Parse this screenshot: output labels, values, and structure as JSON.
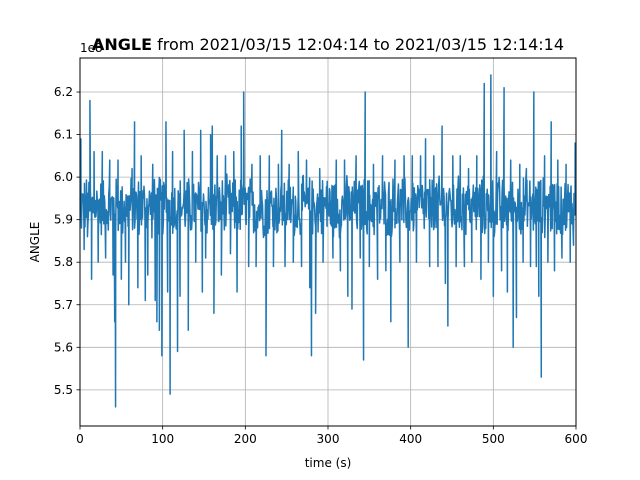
{
  "chart_data": {
    "type": "line",
    "title_bold": "ANGLE",
    "title_rest": " from 2021/03/15 12:04:14 to 2021/03/15 12:14:14",
    "xlabel": "time (s)",
    "ylabel": "ANGLE",
    "offset_label": "1e8",
    "xlim": [
      0,
      600
    ],
    "ylim": [
      5.415,
      6.28
    ],
    "xticks": [
      0,
      100,
      200,
      300,
      400,
      500,
      600
    ],
    "yticks": [
      5.5,
      5.6,
      5.7,
      5.8,
      5.9,
      6.0,
      6.1,
      6.2
    ],
    "ytick_labels": [
      "5.5",
      "5.6",
      "5.7",
      "5.8",
      "5.9",
      "6.0",
      "6.1",
      "6.2"
    ],
    "grid": true,
    "series": [
      {
        "color": "#1f77b4",
        "baseline": 5.93,
        "noise_range": [
          5.84,
          6.0
        ],
        "sample_step": 0.6,
        "spikes": [
          {
            "x": 1,
            "y": 6.09
          },
          {
            "x": 5,
            "y": 5.83
          },
          {
            "x": 9,
            "y": 5.86
          },
          {
            "x": 12,
            "y": 6.18
          },
          {
            "x": 14,
            "y": 5.76
          },
          {
            "x": 17,
            "y": 6.06
          },
          {
            "x": 22,
            "y": 5.8
          },
          {
            "x": 27,
            "y": 6.06
          },
          {
            "x": 31,
            "y": 5.81
          },
          {
            "x": 36,
            "y": 6.04
          },
          {
            "x": 40,
            "y": 5.77
          },
          {
            "x": 42,
            "y": 5.66
          },
          {
            "x": 43,
            "y": 5.46
          },
          {
            "x": 46,
            "y": 6.04
          },
          {
            "x": 50,
            "y": 5.76
          },
          {
            "x": 55,
            "y": 5.8
          },
          {
            "x": 59,
            "y": 5.7
          },
          {
            "x": 63,
            "y": 6.02
          },
          {
            "x": 66,
            "y": 6.13
          },
          {
            "x": 70,
            "y": 5.74
          },
          {
            "x": 74,
            "y": 6.05
          },
          {
            "x": 79,
            "y": 5.71
          },
          {
            "x": 82,
            "y": 5.77
          },
          {
            "x": 88,
            "y": 6.03
          },
          {
            "x": 91,
            "y": 5.71
          },
          {
            "x": 93,
            "y": 5.66
          },
          {
            "x": 96,
            "y": 5.64
          },
          {
            "x": 99,
            "y": 5.58
          },
          {
            "x": 104,
            "y": 6.13
          },
          {
            "x": 106,
            "y": 5.73
          },
          {
            "x": 109,
            "y": 5.49
          },
          {
            "x": 112,
            "y": 6.06
          },
          {
            "x": 118,
            "y": 5.59
          },
          {
            "x": 121,
            "y": 5.72
          },
          {
            "x": 126,
            "y": 6.11
          },
          {
            "x": 131,
            "y": 5.64
          },
          {
            "x": 136,
            "y": 6.06
          },
          {
            "x": 140,
            "y": 5.8
          },
          {
            "x": 146,
            "y": 6.11
          },
          {
            "x": 148,
            "y": 5.73
          },
          {
            "x": 152,
            "y": 5.81
          },
          {
            "x": 158,
            "y": 6.1
          },
          {
            "x": 160,
            "y": 6.12
          },
          {
            "x": 162,
            "y": 5.68
          },
          {
            "x": 166,
            "y": 6.05
          },
          {
            "x": 171,
            "y": 5.77
          },
          {
            "x": 176,
            "y": 6.05
          },
          {
            "x": 182,
            "y": 5.82
          },
          {
            "x": 186,
            "y": 6.06
          },
          {
            "x": 190,
            "y": 5.73
          },
          {
            "x": 195,
            "y": 6.12
          },
          {
            "x": 198,
            "y": 6.2
          },
          {
            "x": 204,
            "y": 5.79
          },
          {
            "x": 208,
            "y": 6.03
          },
          {
            "x": 213,
            "y": 5.79
          },
          {
            "x": 218,
            "y": 6.05
          },
          {
            "x": 225,
            "y": 5.58
          },
          {
            "x": 229,
            "y": 6.05
          },
          {
            "x": 234,
            "y": 5.79
          },
          {
            "x": 240,
            "y": 6.03
          },
          {
            "x": 244,
            "y": 6.11
          },
          {
            "x": 248,
            "y": 5.79
          },
          {
            "x": 253,
            "y": 6.03
          },
          {
            "x": 258,
            "y": 5.8
          },
          {
            "x": 264,
            "y": 6.06
          },
          {
            "x": 268,
            "y": 5.79
          },
          {
            "x": 274,
            "y": 6.04
          },
          {
            "x": 278,
            "y": 5.74
          },
          {
            "x": 280,
            "y": 5.58
          },
          {
            "x": 285,
            "y": 5.68
          },
          {
            "x": 290,
            "y": 6.02
          },
          {
            "x": 294,
            "y": 5.8
          },
          {
            "x": 299,
            "y": 5.99
          },
          {
            "x": 303,
            "y": 5.89
          },
          {
            "x": 306,
            "y": 5.81
          },
          {
            "x": 310,
            "y": 6.04
          },
          {
            "x": 315,
            "y": 5.78
          },
          {
            "x": 320,
            "y": 6.04
          },
          {
            "x": 324,
            "y": 5.72
          },
          {
            "x": 329,
            "y": 5.69
          },
          {
            "x": 334,
            "y": 6.05
          },
          {
            "x": 339,
            "y": 5.81
          },
          {
            "x": 343,
            "y": 5.57
          },
          {
            "x": 345,
            "y": 6.2
          },
          {
            "x": 350,
            "y": 5.79
          },
          {
            "x": 355,
            "y": 6.03
          },
          {
            "x": 360,
            "y": 5.76
          },
          {
            "x": 366,
            "y": 6.05
          },
          {
            "x": 370,
            "y": 5.78
          },
          {
            "x": 376,
            "y": 5.66
          },
          {
            "x": 381,
            "y": 6.04
          },
          {
            "x": 387,
            "y": 5.8
          },
          {
            "x": 392,
            "y": 6.05
          },
          {
            "x": 397,
            "y": 5.6
          },
          {
            "x": 402,
            "y": 6.05
          },
          {
            "x": 407,
            "y": 5.8
          },
          {
            "x": 412,
            "y": 6.05
          },
          {
            "x": 418,
            "y": 6.09
          },
          {
            "x": 423,
            "y": 5.79
          },
          {
            "x": 428,
            "y": 6.05
          },
          {
            "x": 433,
            "y": 5.79
          },
          {
            "x": 438,
            "y": 6.12
          },
          {
            "x": 442,
            "y": 5.75
          },
          {
            "x": 445,
            "y": 5.65
          },
          {
            "x": 451,
            "y": 6.05
          },
          {
            "x": 455,
            "y": 5.79
          },
          {
            "x": 460,
            "y": 6.05
          },
          {
            "x": 465,
            "y": 5.79
          },
          {
            "x": 470,
            "y": 6.02
          },
          {
            "x": 474,
            "y": 5.8
          },
          {
            "x": 480,
            "y": 6.05
          },
          {
            "x": 485,
            "y": 5.76
          },
          {
            "x": 489,
            "y": 6.22
          },
          {
            "x": 494,
            "y": 5.8
          },
          {
            "x": 497,
            "y": 6.24
          },
          {
            "x": 500,
            "y": 5.72
          },
          {
            "x": 504,
            "y": 6.06
          },
          {
            "x": 510,
            "y": 5.78
          },
          {
            "x": 513,
            "y": 6.21
          },
          {
            "x": 517,
            "y": 5.73
          },
          {
            "x": 521,
            "y": 6.04
          },
          {
            "x": 524,
            "y": 5.6
          },
          {
            "x": 528,
            "y": 5.67
          },
          {
            "x": 532,
            "y": 6.03
          },
          {
            "x": 536,
            "y": 5.8
          },
          {
            "x": 540,
            "y": 6.02
          },
          {
            "x": 545,
            "y": 5.79
          },
          {
            "x": 549,
            "y": 6.2
          },
          {
            "x": 552,
            "y": 5.79
          },
          {
            "x": 555,
            "y": 5.72
          },
          {
            "x": 558,
            "y": 5.53
          },
          {
            "x": 562,
            "y": 6.05
          },
          {
            "x": 566,
            "y": 5.8
          },
          {
            "x": 570,
            "y": 6.13
          },
          {
            "x": 574,
            "y": 5.78
          },
          {
            "x": 578,
            "y": 6.04
          },
          {
            "x": 583,
            "y": 5.81
          },
          {
            "x": 588,
            "y": 6.03
          },
          {
            "x": 593,
            "y": 5.8
          },
          {
            "x": 597,
            "y": 5.84
          },
          {
            "x": 599,
            "y": 6.08
          }
        ]
      }
    ]
  }
}
